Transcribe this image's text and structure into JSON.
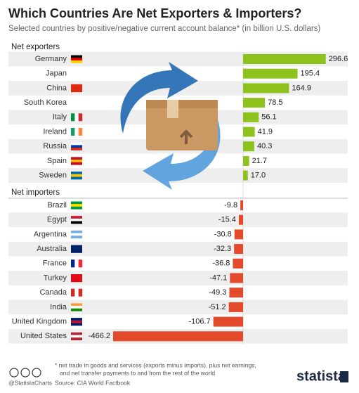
{
  "chart_data": {
    "type": "bar",
    "orientation": "horizontal",
    "title": "Which Countries Are Net Exporters & Importers?",
    "subtitle": "Selected countries by positive/negative current account balance* (in billion U.S. dollars)",
    "groups": [
      {
        "name": "Net exporters",
        "color": "#8dc21f",
        "categories": [
          "Germany",
          "Japan",
          "China",
          "South Korea",
          "Italy",
          "Ireland",
          "Russia",
          "Spain",
          "Sweden"
        ],
        "values": [
          296.6,
          195.4,
          164.9,
          78.5,
          56.1,
          41.9,
          40.3,
          21.7,
          17.0
        ],
        "value_labels": [
          "296.6",
          "195.4",
          "164.9",
          "78.5",
          "56.1",
          "41.9",
          "40.3",
          "21.7",
          "17.0"
        ]
      },
      {
        "name": "Net importers",
        "color": "#e3492b",
        "categories": [
          "Brazil",
          "Egypt",
          "Argentina",
          "Australia",
          "France",
          "Turkey",
          "Canada",
          "India",
          "United Kingdom",
          "United States"
        ],
        "values": [
          -9.8,
          -15.4,
          -30.8,
          -32.3,
          -36.8,
          -47.1,
          -49.3,
          -51.2,
          -106.7,
          -466.2
        ],
        "value_labels": [
          "-9.8",
          "-15.4",
          "-30.8",
          "-32.3",
          "-36.8",
          "-47.1",
          "-49.3",
          "-51.2",
          "-106.7",
          "-466.2"
        ]
      }
    ],
    "footnote": [
      "* net trade in goods and services (exports minus imports), plus net earnings,",
      "and net transfer payments to and from the rest of the world"
    ],
    "source": "Source: CIA World Factbook",
    "credit": "@StatistaCharts",
    "brand": "statista"
  }
}
